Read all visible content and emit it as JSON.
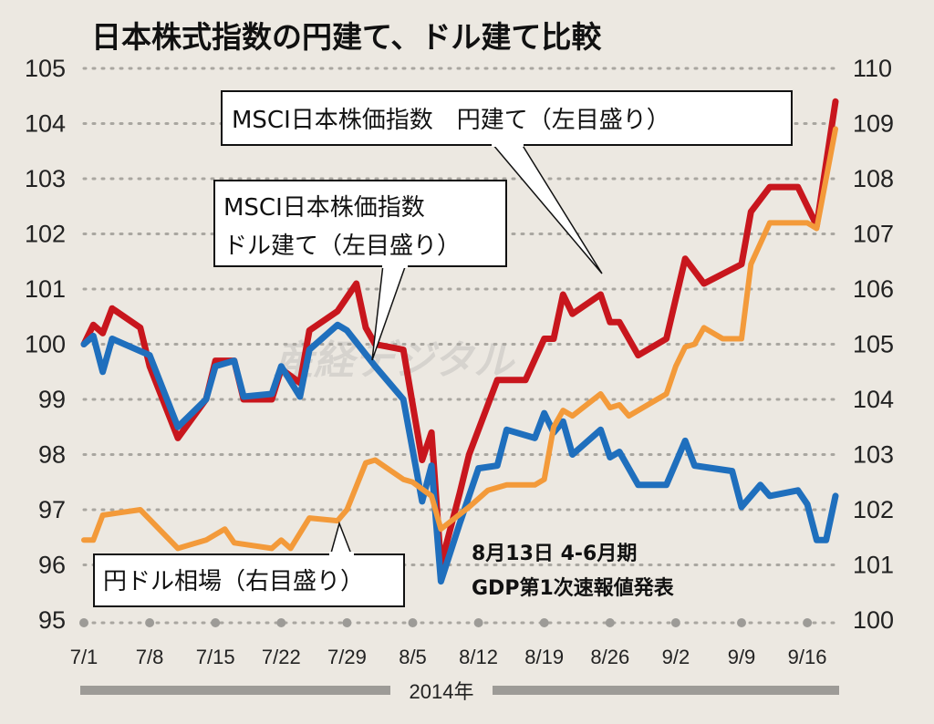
{
  "chart_data": {
    "type": "line",
    "title": "日本株式指数の円建て、ドル建て比較",
    "x_tick_labels": [
      "7/1",
      "7/8",
      "7/15",
      "7/22",
      "7/29",
      "8/5",
      "8/12",
      "8/19",
      "8/26",
      "9/2",
      "9/9",
      "9/16"
    ],
    "x_label": "2014年",
    "y_left": {
      "ylim": [
        95,
        105
      ],
      "ticks": [
        "95",
        "96",
        "97",
        "98",
        "99",
        "100",
        "101",
        "102",
        "103",
        "104",
        "105"
      ]
    },
    "y_right": {
      "ylim": [
        100,
        110
      ],
      "ticks": [
        "100",
        "101",
        "102",
        "103",
        "104",
        "105",
        "106",
        "107",
        "108",
        "109",
        "110"
      ]
    },
    "grid": "horizontal dotted",
    "series": [
      {
        "name": "MSCI日本株価指数　円建て（左目盛り）",
        "axis": "left",
        "color": "#c8161d",
        "points": [
          [
            "7/1",
            100.0
          ],
          [
            "7/2",
            100.35
          ],
          [
            "7/3",
            100.2
          ],
          [
            "7/4",
            100.65
          ],
          [
            "7/7",
            100.3
          ],
          [
            "7/8",
            99.6
          ],
          [
            "7/11",
            98.3
          ],
          [
            "7/14",
            99.0
          ],
          [
            "7/15",
            99.7
          ],
          [
            "7/17",
            99.7
          ],
          [
            "7/18",
            99.0
          ],
          [
            "7/21",
            99.0
          ],
          [
            "7/22",
            99.55
          ],
          [
            "7/24",
            99.3
          ],
          [
            "7/25",
            100.25
          ],
          [
            "7/28",
            100.6
          ],
          [
            "7/30",
            101.1
          ],
          [
            "7/31",
            100.3
          ],
          [
            "8/1",
            100.0
          ],
          [
            "8/4",
            99.9
          ],
          [
            "8/6",
            97.9
          ],
          [
            "8/7",
            98.4
          ],
          [
            "8/8",
            96.0
          ],
          [
            "8/10",
            97.3
          ],
          [
            "8/11",
            98.0
          ],
          [
            "8/12",
            98.45
          ],
          [
            "8/14",
            99.35
          ],
          [
            "8/17",
            99.35
          ],
          [
            "8/19",
            100.1
          ],
          [
            "8/20",
            100.1
          ],
          [
            "8/21",
            100.9
          ],
          [
            "8/22",
            100.55
          ],
          [
            "8/25",
            100.9
          ],
          [
            "8/26",
            100.4
          ],
          [
            "8/27",
            100.4
          ],
          [
            "8/29",
            99.8
          ],
          [
            "9/1",
            100.1
          ],
          [
            "9/3",
            101.55
          ],
          [
            "9/5",
            101.1
          ],
          [
            "9/9",
            101.45
          ],
          [
            "9/10",
            102.4
          ],
          [
            "9/12",
            102.85
          ],
          [
            "9/15",
            102.85
          ],
          [
            "9/17",
            102.15
          ],
          [
            "9/19",
            104.4
          ]
        ]
      },
      {
        "name": "MSCI日本株価指数 ドル建て（左目盛り）",
        "axis": "left",
        "color": "#1f6fbd",
        "points": [
          [
            "7/1",
            100.0
          ],
          [
            "7/2",
            100.15
          ],
          [
            "7/3",
            99.5
          ],
          [
            "7/4",
            100.1
          ],
          [
            "7/8",
            99.8
          ],
          [
            "7/11",
            98.5
          ],
          [
            "7/14",
            99.0
          ],
          [
            "7/15",
            99.6
          ],
          [
            "7/17",
            99.7
          ],
          [
            "7/18",
            99.05
          ],
          [
            "7/21",
            99.1
          ],
          [
            "7/22",
            99.6
          ],
          [
            "7/24",
            99.05
          ],
          [
            "7/25",
            99.9
          ],
          [
            "7/28",
            100.35
          ],
          [
            "7/29",
            100.25
          ],
          [
            "8/1",
            99.6
          ],
          [
            "8/4",
            99.0
          ],
          [
            "8/6",
            97.15
          ],
          [
            "8/7",
            97.8
          ],
          [
            "8/8",
            95.7
          ],
          [
            "8/10",
            96.75
          ],
          [
            "8/12",
            97.75
          ],
          [
            "8/14",
            97.8
          ],
          [
            "8/15",
            98.45
          ],
          [
            "8/18",
            98.3
          ],
          [
            "8/19",
            98.75
          ],
          [
            "8/20",
            98.4
          ],
          [
            "8/21",
            98.6
          ],
          [
            "8/22",
            98.0
          ],
          [
            "8/25",
            98.45
          ],
          [
            "8/26",
            97.95
          ],
          [
            "8/27",
            98.05
          ],
          [
            "8/29",
            97.45
          ],
          [
            "9/1",
            97.45
          ],
          [
            "9/3",
            98.25
          ],
          [
            "9/4",
            97.8
          ],
          [
            "9/8",
            97.7
          ],
          [
            "9/9",
            97.05
          ],
          [
            "9/11",
            97.45
          ],
          [
            "9/12",
            97.25
          ],
          [
            "9/15",
            97.35
          ],
          [
            "9/16",
            97.1
          ],
          [
            "9/17",
            96.45
          ],
          [
            "9/18",
            96.45
          ],
          [
            "9/19",
            97.25
          ]
        ]
      },
      {
        "name": "円ドル相場（右目盛り）",
        "axis": "right",
        "color": "#f39a3a",
        "points": [
          [
            "7/1",
            101.45
          ],
          [
            "7/2",
            101.45
          ],
          [
            "7/3",
            101.9
          ],
          [
            "7/7",
            102.0
          ],
          [
            "7/11",
            101.3
          ],
          [
            "7/14",
            101.45
          ],
          [
            "7/16",
            101.65
          ],
          [
            "7/17",
            101.4
          ],
          [
            "7/21",
            101.3
          ],
          [
            "7/22",
            101.45
          ],
          [
            "7/23",
            101.3
          ],
          [
            "7/25",
            101.85
          ],
          [
            "7/28",
            101.8
          ],
          [
            "7/29",
            102.0
          ],
          [
            "7/31",
            102.85
          ],
          [
            "8/1",
            102.9
          ],
          [
            "8/4",
            102.55
          ],
          [
            "8/5",
            102.5
          ],
          [
            "8/7",
            102.25
          ],
          [
            "8/8",
            101.65
          ],
          [
            "8/11",
            102.05
          ],
          [
            "8/13",
            102.35
          ],
          [
            "8/15",
            102.45
          ],
          [
            "8/18",
            102.45
          ],
          [
            "8/19",
            102.55
          ],
          [
            "8/20",
            103.5
          ],
          [
            "8/21",
            103.8
          ],
          [
            "8/22",
            103.7
          ],
          [
            "8/25",
            104.1
          ],
          [
            "8/26",
            103.85
          ],
          [
            "8/27",
            103.9
          ],
          [
            "8/28",
            103.7
          ],
          [
            "9/1",
            104.1
          ],
          [
            "9/2",
            104.6
          ],
          [
            "9/3",
            104.95
          ],
          [
            "9/4",
            105.0
          ],
          [
            "9/5",
            105.3
          ],
          [
            "9/7",
            105.1
          ],
          [
            "9/9",
            105.1
          ],
          [
            "9/10",
            106.45
          ],
          [
            "9/12",
            107.2
          ],
          [
            "9/16",
            107.2
          ],
          [
            "9/17",
            107.1
          ],
          [
            "9/19",
            108.9
          ]
        ]
      }
    ],
    "callouts": {
      "yen_label": "MSCI日本株価指数　円建て（左目盛り）",
      "dollar_label_line1": "MSCI日本株価指数",
      "dollar_label_line2": "ドル建て（左目盛り）",
      "fx_label": "円ドル相場（右目盛り）",
      "annotation_line1": "8月13日 4-6月期",
      "annotation_line2": "GDP第1次速報値発表"
    },
    "watermark": "産経デジタル"
  }
}
